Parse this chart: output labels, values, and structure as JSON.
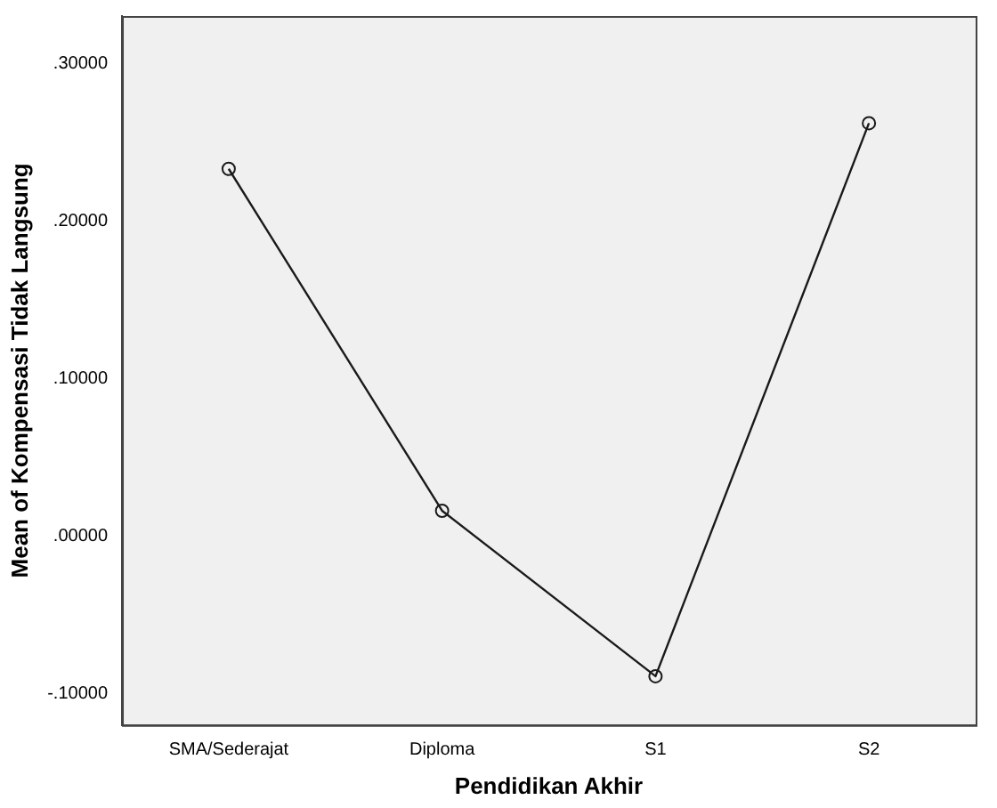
{
  "chart_data": {
    "type": "line",
    "xlabel": "Pendidikan Akhir",
    "ylabel": "Mean of Kompensasi Tidak Langsung",
    "categories": [
      "SMA/Sederajat",
      "Diploma",
      "S1",
      "S2"
    ],
    "series": [
      {
        "color": "#1a1a1a",
        "values": [
          0.233,
          0.016,
          -0.089,
          0.262
        ]
      }
    ],
    "ylim": [
      -0.12,
      0.33
    ],
    "yticks": [
      {
        "value": -0.1,
        "label": "-.10000"
      },
      {
        "value": 0,
        "label": ".00000"
      },
      {
        "value": 0.1,
        "label": ".10000"
      },
      {
        "value": 0.2,
        "label": ".20000"
      },
      {
        "value": 0.3,
        "label": ".30000"
      }
    ],
    "grid": false,
    "legend": false,
    "marker": "circle",
    "line_style": "solid"
  }
}
